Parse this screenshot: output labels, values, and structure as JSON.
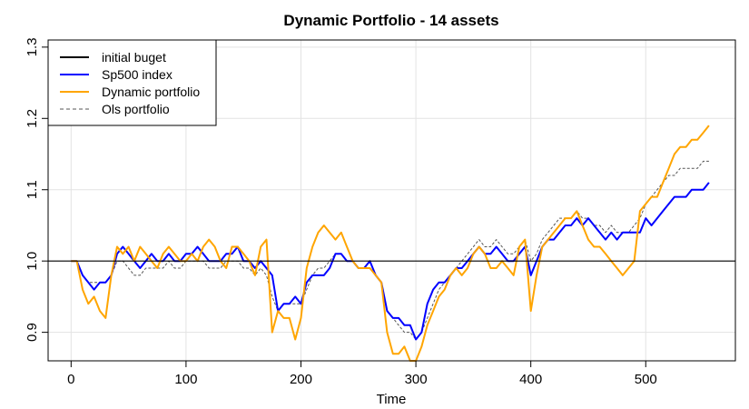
{
  "chart_data": {
    "type": "line",
    "title": "Dynamic Portfolio - 14 assets",
    "xlabel": "Time",
    "ylabel": "",
    "xlim": [
      -20,
      578
    ],
    "ylim": [
      0.86,
      1.31
    ],
    "xticks": [
      0,
      100,
      200,
      300,
      400,
      500
    ],
    "yticks": [
      0.9,
      1.0,
      1.1,
      1.2,
      1.3
    ],
    "grid": true,
    "legend_position": "top-left",
    "baseline": {
      "name": "initial buget",
      "value": 1.0,
      "color": "#000000"
    },
    "series": [
      {
        "name": "Sp500 index",
        "color": "#0000ff",
        "dash": false,
        "x": [
          0,
          5,
          10,
          15,
          20,
          25,
          30,
          35,
          40,
          45,
          50,
          55,
          60,
          65,
          70,
          75,
          80,
          85,
          90,
          95,
          100,
          105,
          110,
          115,
          120,
          125,
          130,
          135,
          140,
          145,
          150,
          155,
          160,
          165,
          170,
          175,
          180,
          185,
          190,
          195,
          200,
          205,
          210,
          215,
          220,
          225,
          230,
          235,
          240,
          245,
          250,
          255,
          260,
          265,
          270,
          275,
          280,
          285,
          290,
          295,
          300,
          305,
          310,
          315,
          320,
          325,
          330,
          335,
          340,
          345,
          350,
          355,
          360,
          365,
          370,
          375,
          380,
          385,
          390,
          395,
          400,
          405,
          410,
          415,
          420,
          425,
          430,
          435,
          440,
          445,
          450,
          455,
          460,
          465,
          470,
          475,
          480,
          485,
          490,
          495,
          500,
          505,
          510,
          515,
          520,
          525,
          530,
          535,
          540,
          545,
          550,
          555
        ],
        "y": [
          1.0,
          1.0,
          0.98,
          0.97,
          0.96,
          0.97,
          0.97,
          0.98,
          1.01,
          1.02,
          1.01,
          1.0,
          0.99,
          1.0,
          1.01,
          1.0,
          1.0,
          1.01,
          1.0,
          1.0,
          1.01,
          1.01,
          1.02,
          1.01,
          1.0,
          1.0,
          1.0,
          1.01,
          1.01,
          1.02,
          1.0,
          1.0,
          0.99,
          1.0,
          0.99,
          0.98,
          0.93,
          0.94,
          0.94,
          0.95,
          0.94,
          0.97,
          0.98,
          0.98,
          0.98,
          0.99,
          1.01,
          1.01,
          1.0,
          1.0,
          0.99,
          0.99,
          1.0,
          0.98,
          0.97,
          0.93,
          0.92,
          0.92,
          0.91,
          0.91,
          0.89,
          0.9,
          0.94,
          0.96,
          0.97,
          0.97,
          0.98,
          0.99,
          0.99,
          1.0,
          1.01,
          1.02,
          1.01,
          1.01,
          1.02,
          1.01,
          1.0,
          1.0,
          1.01,
          1.02,
          0.98,
          1.0,
          1.02,
          1.03,
          1.03,
          1.04,
          1.05,
          1.05,
          1.06,
          1.05,
          1.06,
          1.05,
          1.04,
          1.03,
          1.04,
          1.03,
          1.04,
          1.04,
          1.04,
          1.04,
          1.06,
          1.05,
          1.06,
          1.07,
          1.08,
          1.09,
          1.09,
          1.09,
          1.1,
          1.1,
          1.1,
          1.11
        ]
      },
      {
        "name": "Dynamic portfolio",
        "color": "#ffa500",
        "dash": false,
        "x": [
          0,
          5,
          10,
          15,
          20,
          25,
          30,
          35,
          40,
          45,
          50,
          55,
          60,
          65,
          70,
          75,
          80,
          85,
          90,
          95,
          100,
          105,
          110,
          115,
          120,
          125,
          130,
          135,
          140,
          145,
          150,
          155,
          160,
          165,
          170,
          175,
          180,
          185,
          190,
          195,
          200,
          205,
          210,
          215,
          220,
          225,
          230,
          235,
          240,
          245,
          250,
          255,
          260,
          265,
          270,
          275,
          280,
          285,
          290,
          295,
          300,
          305,
          310,
          315,
          320,
          325,
          330,
          335,
          340,
          345,
          350,
          355,
          360,
          365,
          370,
          375,
          380,
          385,
          390,
          395,
          400,
          405,
          410,
          415,
          420,
          425,
          430,
          435,
          440,
          445,
          450,
          455,
          460,
          465,
          470,
          475,
          480,
          485,
          490,
          495,
          500,
          505,
          510,
          515,
          520,
          525,
          530,
          535,
          540,
          545,
          550,
          555
        ],
        "y": [
          1.0,
          1.0,
          0.96,
          0.94,
          0.95,
          0.93,
          0.92,
          0.98,
          1.02,
          1.01,
          1.02,
          1.0,
          1.02,
          1.01,
          1.0,
          0.99,
          1.01,
          1.02,
          1.01,
          1.0,
          1.0,
          1.01,
          1.0,
          1.02,
          1.03,
          1.02,
          1.0,
          0.99,
          1.02,
          1.02,
          1.01,
          1.0,
          0.98,
          1.02,
          1.03,
          0.9,
          0.93,
          0.92,
          0.92,
          0.89,
          0.92,
          0.99,
          1.02,
          1.04,
          1.05,
          1.04,
          1.03,
          1.04,
          1.02,
          1.0,
          0.99,
          0.99,
          0.99,
          0.98,
          0.97,
          0.9,
          0.87,
          0.87,
          0.88,
          0.86,
          0.86,
          0.88,
          0.91,
          0.93,
          0.95,
          0.96,
          0.98,
          0.99,
          0.98,
          0.99,
          1.01,
          1.02,
          1.01,
          0.99,
          0.99,
          1.0,
          0.99,
          0.98,
          1.02,
          1.03,
          0.93,
          0.98,
          1.02,
          1.03,
          1.04,
          1.05,
          1.06,
          1.06,
          1.07,
          1.05,
          1.03,
          1.02,
          1.02,
          1.01,
          1.0,
          0.99,
          0.98,
          0.99,
          1.0,
          1.07,
          1.08,
          1.09,
          1.09,
          1.11,
          1.13,
          1.15,
          1.16,
          1.16,
          1.17,
          1.17,
          1.18,
          1.19
        ]
      },
      {
        "name": "Ols portfolio",
        "color": "#555555",
        "dash": true,
        "x": [
          0,
          5,
          10,
          15,
          20,
          25,
          30,
          35,
          40,
          45,
          50,
          55,
          60,
          65,
          70,
          75,
          80,
          85,
          90,
          95,
          100,
          105,
          110,
          115,
          120,
          125,
          130,
          135,
          140,
          145,
          150,
          155,
          160,
          165,
          170,
          175,
          180,
          185,
          190,
          195,
          200,
          205,
          210,
          215,
          220,
          225,
          230,
          235,
          240,
          245,
          250,
          255,
          260,
          265,
          270,
          275,
          280,
          285,
          290,
          295,
          300,
          305,
          310,
          315,
          320,
          325,
          330,
          335,
          340,
          345,
          350,
          355,
          360,
          365,
          370,
          375,
          380,
          385,
          390,
          395,
          400,
          405,
          410,
          415,
          420,
          425,
          430,
          435,
          440,
          445,
          450,
          455,
          460,
          465,
          470,
          475,
          480,
          485,
          490,
          495,
          500,
          505,
          510,
          515,
          520,
          525,
          530,
          535,
          540,
          545,
          550,
          555
        ],
        "y": [
          1.0,
          1.0,
          0.98,
          0.97,
          0.97,
          0.97,
          0.97,
          0.98,
          1.0,
          1.0,
          0.99,
          0.98,
          0.98,
          0.99,
          0.99,
          0.99,
          0.99,
          1.0,
          0.99,
          0.99,
          1.0,
          1.0,
          1.0,
          1.0,
          0.99,
          0.99,
          0.99,
          1.0,
          1.0,
          1.0,
          0.99,
          0.99,
          0.98,
          0.99,
          0.98,
          0.95,
          0.93,
          0.94,
          0.94,
          0.94,
          0.94,
          0.96,
          0.98,
          0.99,
          0.99,
          1.0,
          1.01,
          1.01,
          1.0,
          1.0,
          0.99,
          0.99,
          0.99,
          0.98,
          0.97,
          0.93,
          0.92,
          0.91,
          0.9,
          0.9,
          0.89,
          0.9,
          0.92,
          0.94,
          0.96,
          0.97,
          0.98,
          0.99,
          1.0,
          1.01,
          1.02,
          1.03,
          1.02,
          1.02,
          1.03,
          1.02,
          1.01,
          1.01,
          1.02,
          1.03,
          1.0,
          1.01,
          1.03,
          1.04,
          1.05,
          1.06,
          1.06,
          1.06,
          1.07,
          1.06,
          1.06,
          1.05,
          1.05,
          1.04,
          1.05,
          1.04,
          1.04,
          1.04,
          1.05,
          1.06,
          1.08,
          1.09,
          1.1,
          1.11,
          1.12,
          1.12,
          1.13,
          1.13,
          1.13,
          1.13,
          1.14,
          1.14
        ]
      }
    ]
  }
}
